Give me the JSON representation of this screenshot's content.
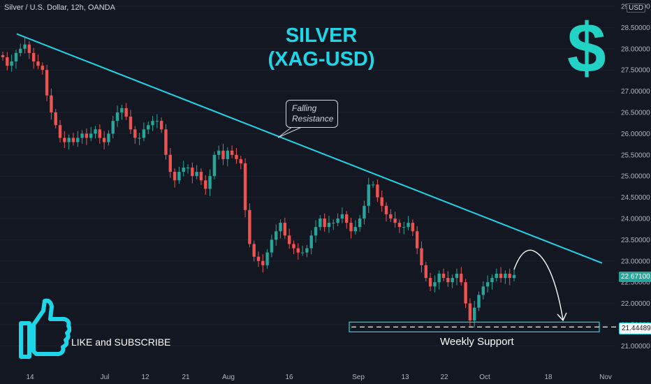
{
  "header": {
    "symbol": "Silver / U.S. Dollar, 12h, OANDA",
    "currency_badge": "USD"
  },
  "title": {
    "line1": "SILVER",
    "line2": "(XAG-USD)"
  },
  "callout": {
    "line1": "Falling",
    "line2": "Resistance"
  },
  "labels": {
    "like": "LIKE and SUBSCRIBE",
    "support": "Weekly Support"
  },
  "icons": {
    "dollar": "$",
    "thumb": "thumbs-up-icon"
  },
  "price_tags": {
    "current": "22.67100",
    "support": "21.44489"
  },
  "colors": {
    "background": "#131722",
    "up": "#26a69a",
    "down": "#ef5350",
    "accent": "#1fd6e8"
  },
  "chart_data": {
    "type": "candlestick",
    "symbol": "XAG/USD",
    "timeframe": "12h",
    "y_axis": {
      "ticks": [
        "29.00000",
        "28.50000",
        "28.00000",
        "27.50000",
        "27.00000",
        "26.50000",
        "26.00000",
        "25.50000",
        "25.00000",
        "24.50000",
        "24.00000",
        "23.50000",
        "23.00000",
        "22.50000",
        "22.00000",
        "21.50000",
        "21.00000"
      ],
      "range": [
        20.6,
        29.0
      ]
    },
    "x_axis": {
      "ticks": [
        "14",
        "Jul",
        "12",
        "21",
        "Aug",
        "16",
        "Sep",
        "13",
        "22",
        "Oct",
        "18",
        "Nov"
      ]
    },
    "series_close": [
      27.8,
      27.6,
      27.7,
      27.9,
      28.0,
      28.1,
      27.9,
      27.7,
      27.6,
      27.5,
      26.9,
      26.5,
      26.2,
      25.9,
      25.8,
      25.9,
      25.8,
      25.9,
      26.0,
      25.9,
      26.0,
      26.1,
      25.9,
      25.8,
      26.0,
      26.3,
      26.5,
      26.6,
      26.4,
      26.1,
      25.9,
      25.9,
      26.1,
      26.2,
      26.3,
      26.3,
      26.1,
      25.5,
      25.1,
      24.9,
      25.1,
      25.2,
      25.2,
      25.0,
      25.1,
      24.9,
      24.7,
      25.0,
      25.5,
      25.6,
      25.4,
      25.6,
      25.5,
      25.4,
      25.3,
      24.2,
      23.4,
      23.1,
      23.0,
      22.9,
      23.2,
      23.5,
      23.7,
      23.9,
      23.6,
      23.4,
      23.3,
      23.2,
      23.2,
      23.3,
      23.6,
      23.8,
      24.0,
      23.8,
      23.9,
      23.9,
      24.0,
      24.1,
      23.9,
      23.7,
      23.8,
      24.0,
      24.3,
      24.8,
      24.8,
      24.5,
      24.3,
      24.1,
      24.0,
      23.9,
      23.8,
      23.8,
      23.9,
      23.7,
      23.3,
      22.9,
      22.6,
      22.4,
      22.5,
      22.7,
      22.6,
      22.5,
      22.6,
      22.7,
      22.5,
      22.0,
      21.6,
      21.9,
      22.2,
      22.4,
      22.5,
      22.6,
      22.7,
      22.6,
      22.7,
      22.6,
      22.67
    ],
    "annotations": {
      "falling_resistance": {
        "from_price": 28.35,
        "to_price": 22.95
      },
      "weekly_support_level": 21.44489,
      "current_price": 22.671
    }
  }
}
